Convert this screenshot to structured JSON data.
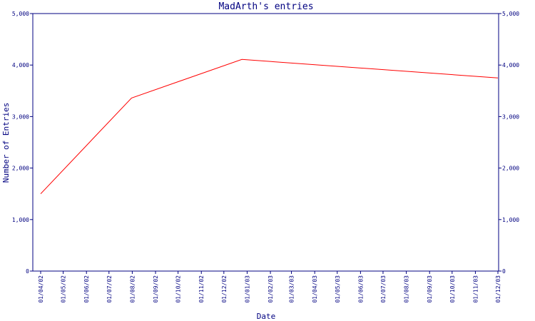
{
  "chart_data": {
    "type": "line",
    "title": "MadArth's entries",
    "xlabel": "Date",
    "ylabel": "Number of Entries",
    "ylim": [
      0,
      5000
    ],
    "y_ticks": [
      {
        "value": 0,
        "label": "0"
      },
      {
        "value": 1000,
        "label": "1,000"
      },
      {
        "value": 2000,
        "label": "2,000"
      },
      {
        "value": 3000,
        "label": "3,000"
      },
      {
        "value": 4000,
        "label": "4,000"
      },
      {
        "value": 5000,
        "label": "5,000"
      }
    ],
    "x_ticks": [
      "01/04/02",
      "01/05/02",
      "01/06/02",
      "01/07/02",
      "01/08/02",
      "01/09/02",
      "01/10/02",
      "01/11/02",
      "01/12/02",
      "01/01/03",
      "01/02/03",
      "01/03/03",
      "01/04/03",
      "01/05/03",
      "01/06/03",
      "01/07/03",
      "01/08/03",
      "01/09/03",
      "01/10/03",
      "01/11/03",
      "01/12/03"
    ],
    "grid": false,
    "series": [
      {
        "color": "#ff0000",
        "x": [
          "2002-04-01",
          "2002-07-31",
          "2002-12-25",
          "2003-12-01"
        ],
        "y": [
          1500,
          3360,
          4110,
          3750
        ]
      }
    ]
  },
  "colors": {
    "axis": "#000080",
    "text": "#000080",
    "line": "#ff0000",
    "background": "#ffffff"
  }
}
